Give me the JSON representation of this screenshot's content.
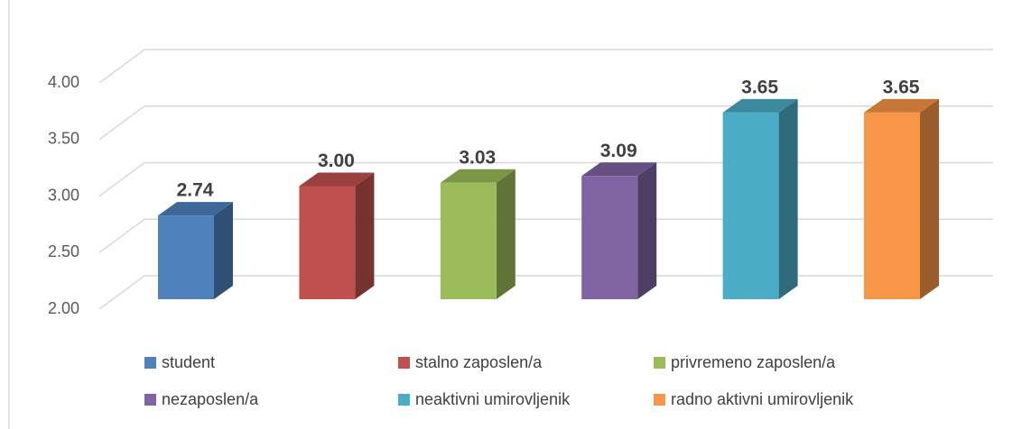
{
  "chart_data": {
    "type": "bar3d",
    "series": [
      {
        "name": "student",
        "color": "#4f81bd",
        "values": [
          2.74
        ],
        "value_labels": [
          "2.74"
        ]
      },
      {
        "name": "stalno zaposlen/a",
        "color": "#c0504d",
        "values": [
          3.0
        ],
        "value_labels": [
          "3.00"
        ]
      },
      {
        "name": "privremeno zaposlen/a",
        "color": "#9bbb59",
        "values": [
          3.03
        ],
        "value_labels": [
          "3.03"
        ]
      },
      {
        "name": "nezaposlen/a",
        "color": "#8064a2",
        "values": [
          3.09
        ],
        "value_labels": [
          "3.09"
        ]
      },
      {
        "name": "neaktivni umirovljenik",
        "color": "#4bacc6",
        "values": [
          3.65
        ],
        "value_labels": [
          "3.65"
        ]
      },
      {
        "name": "radno aktivni umirovljenik",
        "color": "#f79646",
        "values": [
          3.65
        ],
        "value_labels": [
          "3.65"
        ]
      }
    ],
    "ylim": [
      2,
      4
    ],
    "yticks": [
      {
        "value": 2,
        "label": "2.00"
      },
      {
        "value": 2.5,
        "label": "2.50"
      },
      {
        "value": 3,
        "label": "3.00"
      },
      {
        "value": 3.5,
        "label": "3.50"
      },
      {
        "value": 4,
        "label": "4.00"
      }
    ],
    "grid": true,
    "legend": "bottom"
  }
}
